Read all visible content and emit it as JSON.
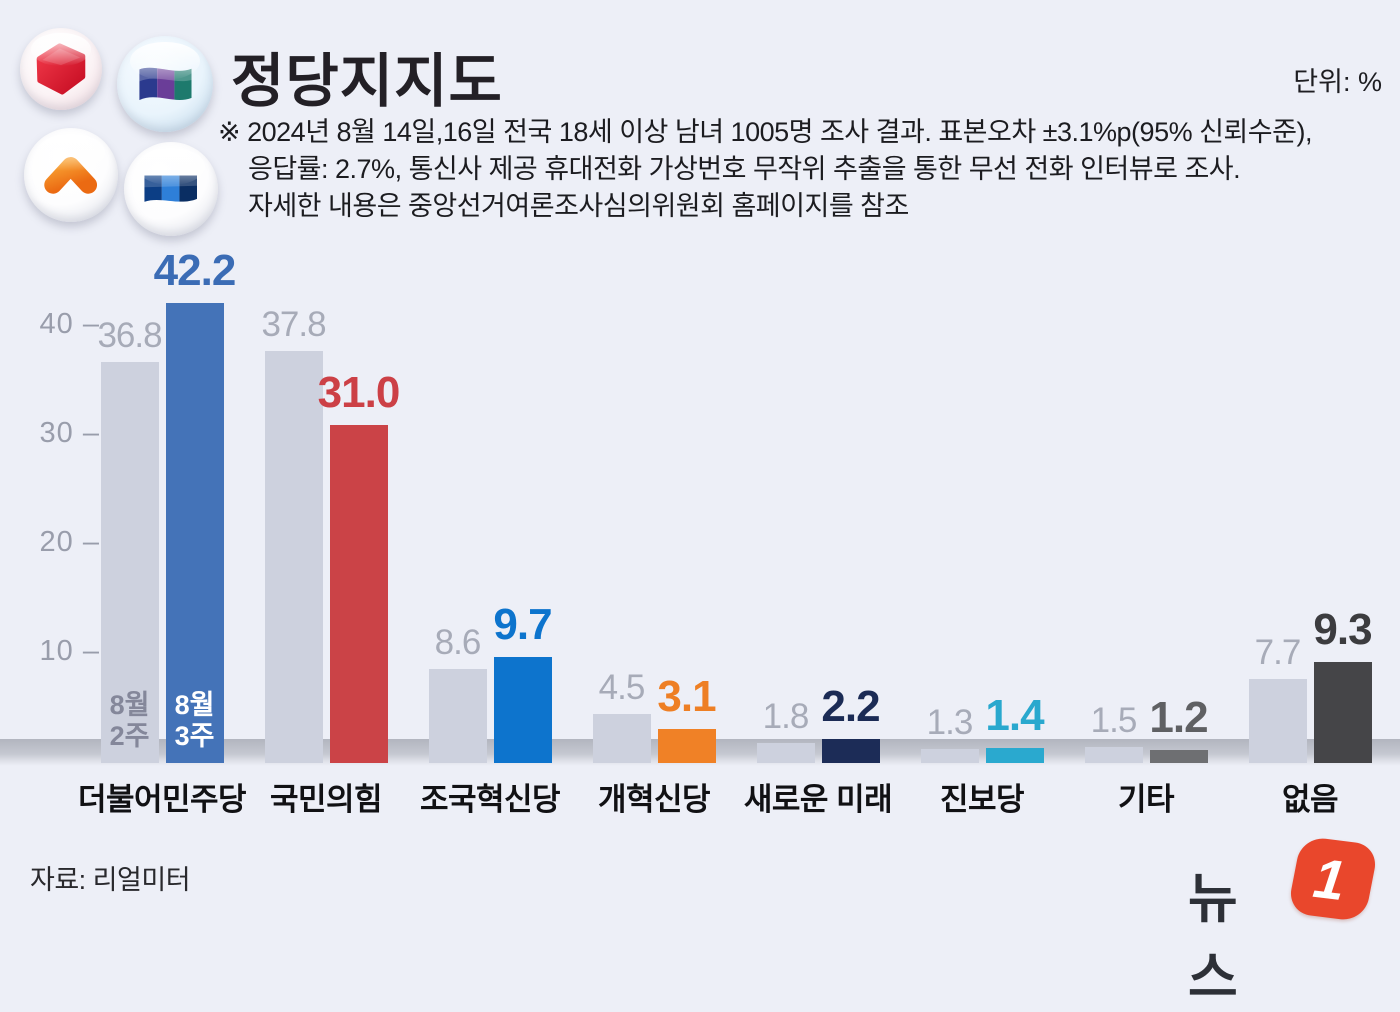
{
  "header": {
    "title": "정당지지도",
    "unit_label": "단위: %",
    "note_line1": "※ 2024년 8월 14일,16일 전국 18세 이상 남녀 1005명 조사 결과. 표본오차 ±3.1%p(95% 신뢰수준),",
    "note_line2": "응답률: 2.7%, 통신사 제공 휴대전화 가상번호 무작위 추출을 통한 무선 전화 인터뷰로 조사.",
    "note_line3": "자세한 내용은 중앙선거여론조사심의위원회 홈페이지를 참조",
    "logos": [
      "ppp-red-cube-logo",
      "rebuilding-korea-flag-logo",
      "reform-party-chevron-logo",
      "democratic-party-flag-logo"
    ]
  },
  "footer": {
    "source": "자료: 리얼미터",
    "brand_text": "뉴스",
    "brand_badge": "1"
  },
  "chart_data": {
    "type": "bar",
    "title": "정당지지도",
    "unit": "%",
    "categories": [
      "더불어민주당",
      "국민의힘",
      "조국혁신당",
      "개혁신당",
      "새로운 미래",
      "진보당",
      "기타",
      "없음"
    ],
    "series": [
      {
        "name": "8월 2주",
        "name_lines": [
          "8월",
          "2주"
        ],
        "values": [
          36.8,
          37.8,
          8.6,
          4.5,
          1.8,
          1.3,
          1.5,
          7.7
        ],
        "bar_color": "#cdd1de",
        "label_color": "#a7abb8",
        "inbar_text_color": "#84879a"
      },
      {
        "name": "8월 3주",
        "name_lines": [
          "8월",
          "3주"
        ],
        "values": [
          42.2,
          31.0,
          9.7,
          3.1,
          2.2,
          1.4,
          1.2,
          9.3
        ],
        "bar_colors": [
          "#4473b8",
          "#cb4347",
          "#0d74cd",
          "#f08126",
          "#1c2c57",
          "#2aa9cf",
          "#6e6f72",
          "#454548"
        ],
        "label_colors": [
          "#3b6cb5",
          "#cc4046",
          "#0d74cd",
          "#ee7f24",
          "#1b2b55",
          "#29a8ce",
          "#5f6063",
          "#3c3c3f"
        ],
        "inbar_text_color": "#ffffff"
      }
    ],
    "yticks": [
      10,
      20,
      30,
      40
    ],
    "ylim": [
      0,
      46
    ],
    "grid": false,
    "legend_position": "inside-first-bar-pair",
    "value_labels": "above-bars",
    "accent_colors": {
      "background": "#edeff7",
      "floor_band": "#b2b5bf",
      "tick_text": "#999dab",
      "brand_red": "#e9472c"
    }
  }
}
